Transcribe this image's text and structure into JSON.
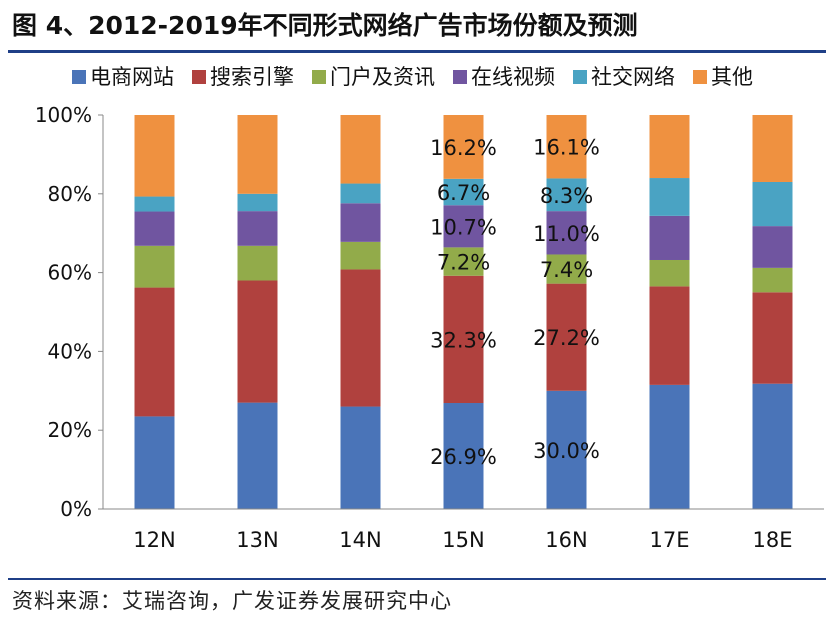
{
  "title": "图 4、2012-2019年不同形式网络广告市场份额及预测",
  "source": "资料来源：艾瑞咨询，广发证券发展研究中心",
  "chart_data": {
    "type": "bar",
    "stacked": true,
    "categories": [
      "12N",
      "13N",
      "14N",
      "15N",
      "16N",
      "17E",
      "18E"
    ],
    "ylim": [
      0,
      100
    ],
    "yticks": [
      "0%",
      "20%",
      "40%",
      "60%",
      "80%",
      "100%"
    ],
    "legend_position": "top",
    "grid": false,
    "series": [
      {
        "name": "电商网站",
        "color": "#4a74b8",
        "values": [
          23.5,
          27.0,
          26.0,
          26.9,
          30.0,
          31.5,
          31.8
        ]
      },
      {
        "name": "搜索引擎",
        "color": "#b0413e",
        "values": [
          32.7,
          31.0,
          34.8,
          32.3,
          27.2,
          25.0,
          23.2
        ]
      },
      {
        "name": "门户及资讯",
        "color": "#92ab4a",
        "values": [
          10.6,
          8.8,
          7.0,
          7.2,
          7.4,
          6.7,
          6.2
        ]
      },
      {
        "name": "在线视频",
        "color": "#7055a0",
        "values": [
          8.7,
          8.8,
          9.8,
          10.7,
          11.0,
          11.2,
          10.6
        ]
      },
      {
        "name": "社交网络",
        "color": "#4aa3c3",
        "values": [
          3.8,
          4.4,
          5.0,
          6.7,
          8.3,
          9.6,
          11.2
        ]
      },
      {
        "name": "其他",
        "color": "#ef9140",
        "values": [
          20.7,
          20.0,
          17.4,
          16.2,
          16.1,
          16.0,
          17.0
        ]
      }
    ],
    "data_labels": [
      {
        "category": "15N",
        "labels": [
          "26.9%",
          "32.3%",
          "7.2%",
          "10.7%",
          "6.7%",
          "16.2%"
        ]
      },
      {
        "category": "16N",
        "labels": [
          "30.0%",
          "27.2%",
          "7.4%",
          "11.0%",
          "8.3%",
          "16.1%"
        ]
      }
    ]
  }
}
